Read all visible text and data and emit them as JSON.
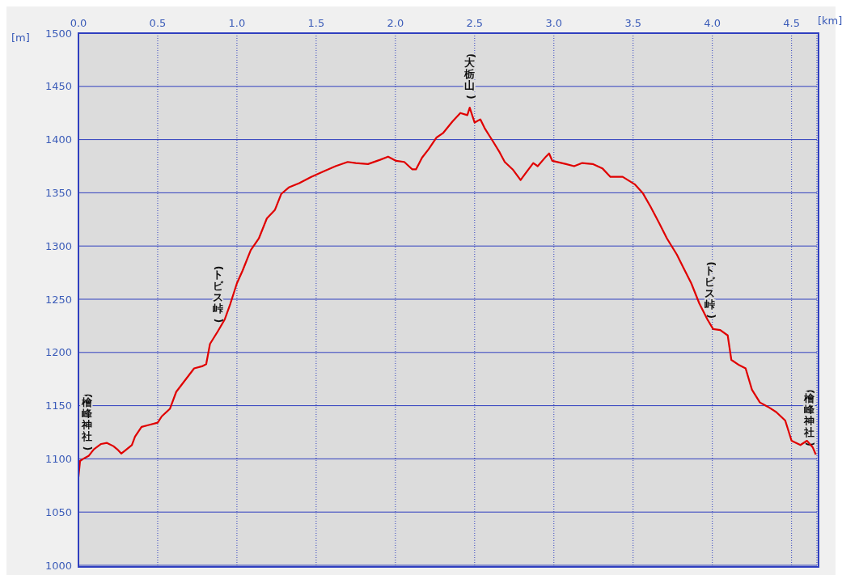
{
  "chart_data": {
    "type": "line",
    "xlabel": "[km]",
    "ylabel": "[m]",
    "x": [
      0,
      0.01,
      0.03,
      0.066,
      0.097,
      0.143,
      0.18,
      0.22,
      0.245,
      0.27,
      0.296,
      0.337,
      0.357,
      0.398,
      0.449,
      0.5,
      0.526,
      0.577,
      0.617,
      0.653,
      0.73,
      0.78,
      0.806,
      0.83,
      0.88,
      0.923,
      0.959,
      1.0,
      1.036,
      1.087,
      1.138,
      1.189,
      1.24,
      1.28,
      1.327,
      1.393,
      1.469,
      1.546,
      1.622,
      1.699,
      1.75,
      1.827,
      1.903,
      1.954,
      2.005,
      2.056,
      2.107,
      2.13,
      2.168,
      2.21,
      2.26,
      2.3,
      2.36,
      2.41,
      2.454,
      2.469,
      2.5,
      2.536,
      2.566,
      2.617,
      2.658,
      2.69,
      2.74,
      2.79,
      2.82,
      2.87,
      2.898,
      2.95,
      2.97,
      2.99,
      3.077,
      3.128,
      3.179,
      3.245,
      3.306,
      3.357,
      3.434,
      3.51,
      3.56,
      3.61,
      3.663,
      3.714,
      3.776,
      3.816,
      3.867,
      3.918,
      3.969,
      4.005,
      4.05,
      4.097,
      4.12,
      4.17,
      4.21,
      4.25,
      4.3,
      4.35,
      4.403,
      4.46,
      4.5,
      4.556,
      4.597,
      4.633,
      4.653
    ],
    "series": [
      {
        "color": "#e00000",
        "values": [
          1083,
          1098,
          1100,
          1103,
          1109,
          1114,
          1115,
          1112,
          1109,
          1105,
          1108,
          1113,
          1121,
          1130,
          1132,
          1134,
          1140,
          1147,
          1163,
          1170,
          1185,
          1187,
          1189,
          1208,
          1220,
          1231,
          1246,
          1265,
          1277,
          1296,
          1307,
          1326,
          1334,
          1349,
          1355,
          1359,
          1365,
          1370,
          1375,
          1379,
          1378,
          1377,
          1381,
          1384,
          1380,
          1379,
          1372,
          1372,
          1383,
          1391,
          1402,
          1406,
          1417,
          1425,
          1423,
          1430,
          1416,
          1419,
          1410,
          1398,
          1388,
          1379,
          1372,
          1362,
          1368,
          1378,
          1375,
          1384,
          1387,
          1380,
          1377,
          1375,
          1378,
          1377,
          1373,
          1365,
          1365,
          1358,
          1350,
          1337,
          1322,
          1307,
          1292,
          1280,
          1265,
          1246,
          1231,
          1222,
          1221,
          1216,
          1193,
          1188,
          1185,
          1165,
          1153,
          1149,
          1144,
          1136,
          1117,
          1113,
          1117,
          1111,
          1104
        ]
      }
    ],
    "xlim": [
      0,
      4.66
    ],
    "ylim": [
      1000,
      1500
    ],
    "xticks": [
      {
        "value": 0,
        "label": "0.0"
      },
      0.5,
      {
        "value": 1,
        "label": "1.0"
      },
      1.5,
      {
        "value": 2,
        "label": "2.0"
      },
      2.5,
      {
        "value": 3,
        "label": "3.0"
      },
      3.5,
      {
        "value": 4,
        "label": "4.0"
      },
      4.5
    ],
    "yticks": [
      1000,
      1050,
      1100,
      1150,
      1200,
      1250,
      1300,
      1350,
      1400,
      1450,
      1500
    ],
    "grid": true,
    "marker": "none",
    "line_style": "solid",
    "annotations": [
      {
        "text": "(檜峰神社)",
        "x": 0,
        "y": 1100
      },
      {
        "text": "(トビス峠)",
        "x": 0.88,
        "y": 1220
      },
      {
        "text": "(大栃山)",
        "x": 2.469,
        "y": 1430
      },
      {
        "text": "(トビス峠)",
        "x": 3.985,
        "y": 1224
      },
      {
        "text": "(檜峰神社)",
        "x": 4.653,
        "y": 1104
      }
    ]
  }
}
